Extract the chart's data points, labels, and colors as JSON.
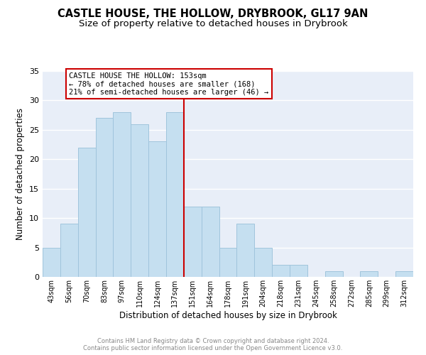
{
  "title": "CASTLE HOUSE, THE HOLLOW, DRYBROOK, GL17 9AN",
  "subtitle": "Size of property relative to detached houses in Drybrook",
  "xlabel": "Distribution of detached houses by size in Drybrook",
  "ylabel": "Number of detached properties",
  "footer1": "Contains HM Land Registry data © Crown copyright and database right 2024.",
  "footer2": "Contains public sector information licensed under the Open Government Licence v3.0.",
  "bin_labels": [
    "43sqm",
    "56sqm",
    "70sqm",
    "83sqm",
    "97sqm",
    "110sqm",
    "124sqm",
    "137sqm",
    "151sqm",
    "164sqm",
    "178sqm",
    "191sqm",
    "204sqm",
    "218sqm",
    "231sqm",
    "245sqm",
    "258sqm",
    "272sqm",
    "285sqm",
    "299sqm",
    "312sqm"
  ],
  "bar_values": [
    5,
    9,
    22,
    27,
    28,
    26,
    23,
    28,
    12,
    12,
    5,
    9,
    5,
    2,
    2,
    0,
    1,
    0,
    1,
    0,
    1
  ],
  "bar_color": "#c5dff0",
  "bar_edge_color": "#a0c4dc",
  "highlight_line_index": 8,
  "highlight_line_color": "#cc0000",
  "annotation_title": "CASTLE HOUSE THE HOLLOW: 153sqm",
  "annotation_line1": "← 78% of detached houses are smaller (168)",
  "annotation_line2": "21% of semi-detached houses are larger (46) →",
  "annotation_box_color": "#ffffff",
  "annotation_box_edge": "#cc0000",
  "ylim": [
    0,
    35
  ],
  "yticks": [
    0,
    5,
    10,
    15,
    20,
    25,
    30,
    35
  ],
  "background_color": "#ffffff",
  "plot_bg_color": "#e8eef8",
  "grid_color": "#ffffff",
  "title_fontsize": 10.5,
  "subtitle_fontsize": 9.5,
  "footer_color": "#888888"
}
